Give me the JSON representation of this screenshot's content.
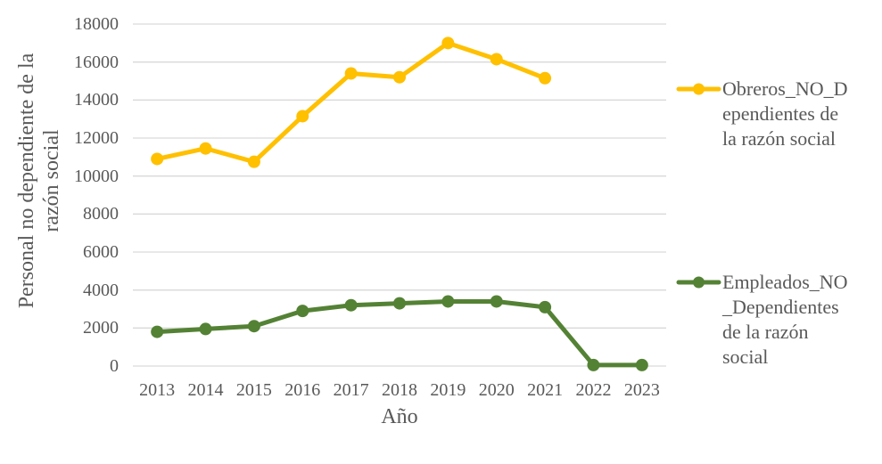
{
  "chart_data": {
    "type": "line",
    "title": "",
    "xlabel": "Año",
    "ylabel": "Personal no dependiente de la razón social",
    "ylabel_wrapped": "Personal no dependiente de la\nrazón social",
    "ylim": [
      0,
      18000
    ],
    "ytick_step": 2000,
    "ytick_labels": [
      "0",
      "2000",
      "4000",
      "6000",
      "8000",
      "10000",
      "12000",
      "14000",
      "16000",
      "18000"
    ],
    "grid": "horizontal",
    "legend_position": "right",
    "categories": [
      "2013",
      "2014",
      "2015",
      "2016",
      "2017",
      "2018",
      "2019",
      "2020",
      "2021",
      "2022",
      "2023"
    ],
    "series": [
      {
        "name": "Obreros_NO_Dependientes de la razón social",
        "legend_wrapped": "Obreros_NO_D\nependientes de\nla razón social",
        "color": "#FFC000",
        "values": [
          10900,
          11450,
          10750,
          13150,
          15400,
          15200,
          17000,
          16150,
          15150,
          null,
          null
        ]
      },
      {
        "name": "Empleados_NO_Dependientes de la razón social",
        "legend_wrapped": "Empleados_NO\n_Dependientes\nde la razón\nsocial",
        "color": "#548235",
        "values": [
          1800,
          1950,
          2100,
          2900,
          3200,
          3300,
          3400,
          3400,
          3100,
          50,
          50
        ]
      }
    ]
  },
  "colors": {
    "text": "#595959",
    "gridline": "#D9D9D9",
    "background": "#FFFFFF"
  }
}
